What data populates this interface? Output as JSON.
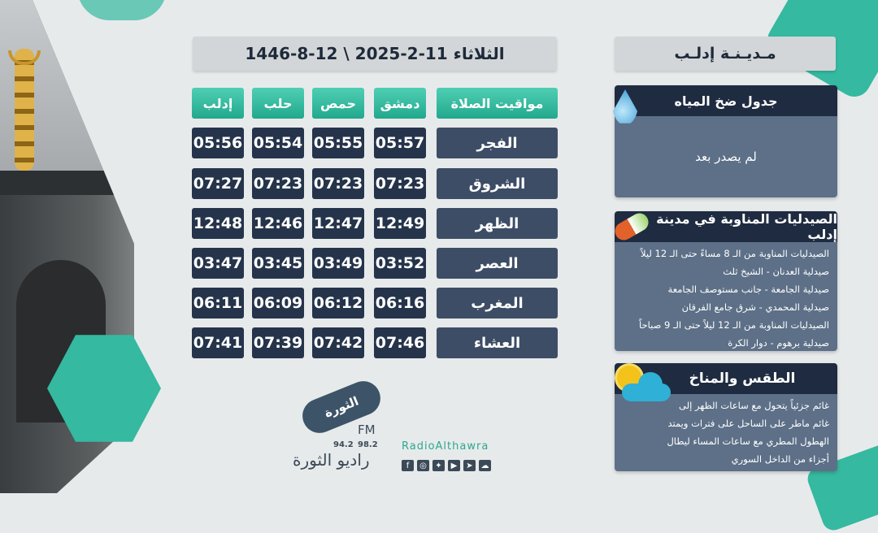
{
  "date_bar": "الثلاثاء 11-2-2025 \\ 12-8-1446",
  "city_bar": "مـديـنـة إدلـب",
  "table": {
    "headers": {
      "prayer": "مواقيت الصلاة",
      "damascus": "دمشق",
      "homs": "حمص",
      "aleppo": "حلب",
      "idlib": "إدلب"
    },
    "rows": [
      {
        "prayer": "الفجر",
        "damascus": "05:57",
        "homs": "05:55",
        "aleppo": "05:54",
        "idlib": "05:56"
      },
      {
        "prayer": "الشروق",
        "damascus": "07:23",
        "homs": "07:23",
        "aleppo": "07:23",
        "idlib": "07:27"
      },
      {
        "prayer": "الظهر",
        "damascus": "12:49",
        "homs": "12:47",
        "aleppo": "12:46",
        "idlib": "12:48"
      },
      {
        "prayer": "العصر",
        "damascus": "03:52",
        "homs": "03:49",
        "aleppo": "03:45",
        "idlib": "03:47"
      },
      {
        "prayer": "المغرب",
        "damascus": "06:16",
        "homs": "06:12",
        "aleppo": "06:09",
        "idlib": "06:11"
      },
      {
        "prayer": "العشاء",
        "damascus": "07:46",
        "homs": "07:42",
        "aleppo": "07:39",
        "idlib": "07:41"
      }
    ]
  },
  "water": {
    "title": "جدول ضخ المياه",
    "body": "لم يصدر بعد",
    "icon": "water-drop-icon"
  },
  "pharmacies": {
    "title": "الصيدليات المناوبة في مدينة إدلب",
    "icon": "pills-icon",
    "lines": [
      "الصيدليات المناوبة من الـ 8 مساءً حتى الـ 12 ليلاً",
      "صيدلية العدنان - الشيخ ثلث",
      "صيدلية الجامعة - جانب مستوصف الجامعة",
      "صيدلية المحمدي - شرق جامع الفرقان",
      "الصيدليات المناوبة من الـ 12 ليلاً حتى الـ 9 صباحاً",
      "صيدلية برهوم - دوار الكرة"
    ]
  },
  "weather": {
    "title": "الطقس والمناخ",
    "icon": "sun-cloud-icon",
    "lines": [
      "غائم جزئياً يتحول مع ساعات الظهر إلى",
      "غائم ماطر على الساحل على فترات ويمتد",
      "الهطول المطري مع ساعات المساء ليطال",
      "أجزاء من الداخل السوري"
    ]
  },
  "logo": {
    "fm": "FM",
    "freq1": "94.2",
    "freq2": "98.2",
    "name": "راديو الثورة",
    "wordmark": "الثورة"
  },
  "social": {
    "handle": "RadioAlthawra",
    "icons": [
      "facebook-icon",
      "instagram-icon",
      "twitter-icon",
      "youtube-icon",
      "telegram-icon",
      "soundcloud-icon"
    ]
  },
  "colors": {
    "teal": "#35b9a0",
    "navy": "#25344b",
    "panel": "#5d7088"
  }
}
